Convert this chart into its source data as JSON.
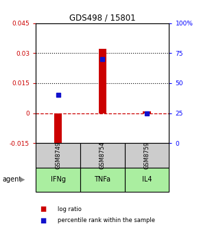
{
  "title": "GDS498 / 15801",
  "samples": [
    "GSM8749",
    "GSM8754",
    "GSM8759"
  ],
  "agents": [
    "IFNg",
    "TNFa",
    "IL4"
  ],
  "log_ratios": [
    -0.016,
    0.032,
    0.001
  ],
  "percentile_ranks": [
    40,
    70,
    25
  ],
  "ylim_left": [
    -0.015,
    0.045
  ],
  "ylim_right": [
    0,
    100
  ],
  "yticks_left": [
    -0.015,
    0,
    0.015,
    0.03,
    0.045
  ],
  "ytick_labels_left": [
    "-0.015",
    "0",
    "0.015",
    "0.03",
    "0.045"
  ],
  "yticks_right": [
    0,
    25,
    50,
    75,
    100
  ],
  "ytick_labels_right": [
    "0",
    "25",
    "50",
    "75",
    "100%"
  ],
  "hlines_dotted": [
    0.015,
    0.03
  ],
  "hline_dashed": 0,
  "bar_color": "#cc0000",
  "square_color": "#1111cc",
  "gray_box_color": "#cccccc",
  "green_box_color": "#aaeea0",
  "agent_label": "agent",
  "legend_log": "log ratio",
  "legend_pct": "percentile rank within the sample",
  "bar_width": 0.18
}
